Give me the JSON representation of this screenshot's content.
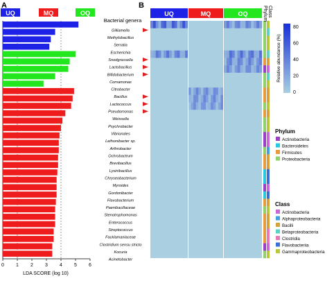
{
  "panels": {
    "a": "A",
    "b": "B"
  },
  "groups": [
    {
      "label": "UQ",
      "color": "#1e22e6"
    },
    {
      "label": "MQ",
      "color": "#ee1c1c"
    },
    {
      "label": "OQ",
      "color": "#22e61e"
    }
  ],
  "genera_header": "Bacterial genera",
  "phylum_header": "Phylum",
  "class_header": "Class",
  "colorbar": {
    "label": "Relative abundance (%)",
    "ticks": [
      "80",
      "60",
      "40",
      "20",
      "0"
    ]
  },
  "legends": {
    "phylum": {
      "title": "Phylum",
      "items": [
        {
          "label": "Actinobacteria",
          "color": "#9b3fc8"
        },
        {
          "label": "Bacteroidetes",
          "color": "#29c8e0"
        },
        {
          "label": "Firmicutes",
          "color": "#e89a3c"
        },
        {
          "label": "Proteobacteria",
          "color": "#8fd16a"
        }
      ]
    },
    "class": {
      "title": "Class",
      "items": [
        {
          "label": "Actinobacteria",
          "color": "#cc66dd"
        },
        {
          "label": "Alphaproteobacteria",
          "color": "#3fa0e0"
        },
        {
          "label": "Bacilli",
          "color": "#d8a23a"
        },
        {
          "label": "Betaproteobacteria",
          "color": "#5bd1c8"
        },
        {
          "label": "Clostridia",
          "color": "#e878b8"
        },
        {
          "label": "Flavobacteriia",
          "color": "#3c6fd6"
        },
        {
          "label": "Gammaproteobacteria",
          "color": "#b8c83a"
        }
      ]
    }
  },
  "chart_data": {
    "type": "bar",
    "orientation": "horizontal",
    "xlabel": "LDA SCORE (log 10)",
    "xlim": [
      0,
      6
    ],
    "xticks": [
      "0",
      "1",
      "2",
      "3",
      "4",
      "5",
      "6"
    ],
    "dashed_lines_at": [
      1,
      4
    ],
    "categories": [
      "Gilliamella",
      "Methylobacillus",
      "Serratia",
      "Escherichia",
      "Snodgrassella",
      "Lactobacillus",
      "Bifidobacterium",
      "Comamonas",
      "Citrobacter",
      "Bacillus",
      "Lactococcus",
      "Pseudomonas",
      "Weissella",
      "Psychrobacter",
      "Vibrionales",
      "Leifsonibacter sp.",
      "Arthrobacter",
      "Ochrobactrum",
      "Brevibacillus",
      "Lysinibacillus",
      "Chryseobacterium",
      "Myroides",
      "Gordonibacter",
      "Flavobacterium",
      "Paenibacillaceae",
      "Stenotrophomonas",
      "Enterococcus",
      "Streptococcus",
      "Facklamaniaceae",
      "Clostridium sensu stricto",
      "Kocuria",
      "Acinetobacter"
    ],
    "values": [
      5.2,
      3.6,
      3.3,
      3.2,
      5.0,
      4.6,
      4.5,
      3.6,
      2.8,
      4.9,
      4.8,
      4.7,
      4.3,
      4.1,
      4.0,
      3.9,
      3.85,
      3.85,
      3.8,
      3.8,
      3.75,
      3.7,
      3.7,
      3.7,
      3.65,
      3.6,
      3.6,
      3.6,
      3.5,
      3.5,
      3.4,
      3.4
    ],
    "groups": [
      "UQ",
      "UQ",
      "UQ",
      "UQ",
      "OQ",
      "OQ",
      "OQ",
      "OQ",
      "OQ",
      "MQ",
      "MQ",
      "MQ",
      "MQ",
      "MQ",
      "MQ",
      "MQ",
      "MQ",
      "MQ",
      "MQ",
      "MQ",
      "MQ",
      "MQ",
      "MQ",
      "MQ",
      "MQ",
      "MQ",
      "MQ",
      "MQ",
      "MQ",
      "MQ",
      "MQ",
      "MQ"
    ],
    "highlighted": [
      "Gilliamella",
      "Snodgrassella",
      "Lactobacillus",
      "Bifidobacterium",
      "Bacillus",
      "Lactococcus",
      "Pseudomonas"
    ],
    "heatmap_high_blocks": [
      {
        "genus": "Gilliamella",
        "group": "UQ",
        "level": 0.75
      },
      {
        "genus": "Snodgrassella",
        "group": "UQ",
        "level": 0.55
      },
      {
        "genus": "Snodgrassella",
        "group": "OQ",
        "level": 0.6
      },
      {
        "genus": "Lactobacillus",
        "group": "OQ",
        "level": 0.5
      },
      {
        "genus": "Bifidobacterium",
        "group": "OQ",
        "level": 0.45
      },
      {
        "genus": "Gilliamella",
        "group": "OQ",
        "level": 0.5
      },
      {
        "genus": "Bacillus",
        "group": "MQ",
        "level": 0.45
      },
      {
        "genus": "Lactococcus",
        "group": "MQ",
        "level": 0.45
      },
      {
        "genus": "Pseudomonas",
        "group": "MQ",
        "level": 0.4
      }
    ]
  }
}
